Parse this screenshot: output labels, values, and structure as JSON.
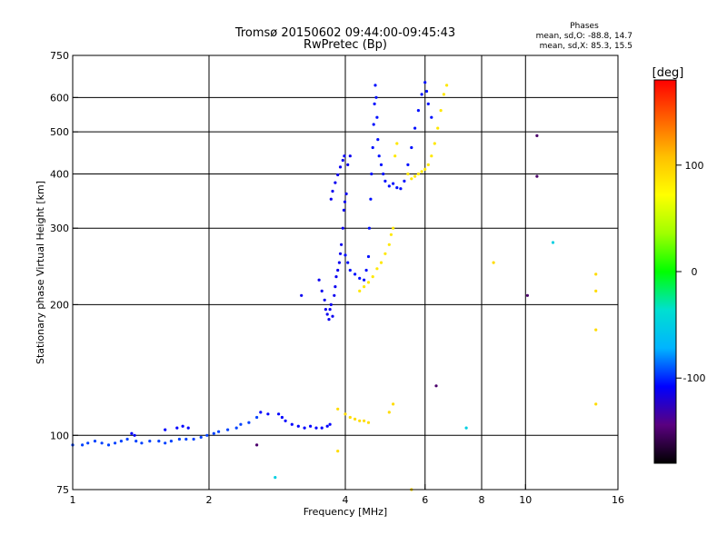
{
  "chart_data": {
    "type": "scatter",
    "title": "Tromsø 20150602 09:44:00-09:45:43",
    "subtitle": "RwPretec (Bp)",
    "annotation": {
      "heading": "Phases",
      "o_line": "mean, sd,O: -88.8, 14.7",
      "x_line": "mean, sd,X:  85.3, 15.5"
    },
    "xlabel": "Frequency [MHz]",
    "ylabel": "Stationary phase Virtual Height [km]",
    "x_scale": "log",
    "y_scale": "log",
    "xlim": [
      1,
      16
    ],
    "ylim": [
      75,
      750
    ],
    "x_ticks": [
      {
        "value": 1,
        "label": "1"
      },
      {
        "value": 2,
        "label": "2"
      },
      {
        "value": 4,
        "label": "4"
      },
      {
        "value": 6,
        "label": "6"
      },
      {
        "value": 8,
        "label": "8"
      },
      {
        "value": 10,
        "label": "10"
      },
      {
        "value": 16,
        "label": "16"
      }
    ],
    "y_ticks": [
      {
        "value": 75,
        "label": "75"
      },
      {
        "value": 100,
        "label": "100"
      },
      {
        "value": 200,
        "label": "200"
      },
      {
        "value": 300,
        "label": "300"
      },
      {
        "value": 400,
        "label": "400"
      },
      {
        "value": 500,
        "label": "500"
      },
      {
        "value": 600,
        "label": "600"
      },
      {
        "value": 750,
        "label": "750"
      }
    ],
    "x_gridlines": [
      2,
      4,
      6,
      8,
      10
    ],
    "y_gridlines": [
      100,
      200,
      300,
      400,
      500,
      600
    ],
    "grid": true,
    "colorbar": {
      "label": "[deg]",
      "range": [
        -180,
        180
      ],
      "ticks": [
        {
          "value": 100,
          "label": "100"
        },
        {
          "value": 0,
          "label": "0"
        },
        {
          "value": -100,
          "label": "-100"
        }
      ],
      "colors": [
        "#000000",
        "#5a0080",
        "#0000ff",
        "#00b4ff",
        "#00e0d0",
        "#00ff00",
        "#a0ff00",
        "#ffff00",
        "#ffc000",
        "#ff6000",
        "#ff0000"
      ]
    },
    "series": [
      {
        "phase": -95,
        "points": [
          [
            1.0,
            95
          ],
          [
            1.05,
            95
          ],
          [
            1.08,
            96
          ],
          [
            1.12,
            97
          ],
          [
            1.16,
            96
          ],
          [
            1.2,
            95
          ],
          [
            1.24,
            96
          ],
          [
            1.28,
            97
          ],
          [
            1.32,
            98
          ],
          [
            1.38,
            97
          ],
          [
            1.42,
            96
          ],
          [
            1.48,
            97
          ],
          [
            1.55,
            97
          ],
          [
            1.6,
            96
          ],
          [
            1.65,
            97
          ],
          [
            1.72,
            98
          ],
          [
            1.78,
            98
          ],
          [
            1.85,
            98
          ],
          [
            1.92,
            99
          ],
          [
            1.98,
            100
          ],
          [
            2.05,
            101
          ],
          [
            2.1,
            102
          ],
          [
            2.2,
            103
          ],
          [
            2.3,
            104
          ],
          [
            2.35,
            106
          ],
          [
            2.45,
            107
          ],
          [
            2.55,
            110
          ]
        ]
      },
      {
        "phase": -108,
        "points": [
          [
            1.35,
            101
          ],
          [
            1.37,
            100
          ],
          [
            1.6,
            103
          ],
          [
            1.7,
            104
          ],
          [
            1.75,
            105
          ],
          [
            1.8,
            104
          ],
          [
            2.6,
            113
          ],
          [
            2.7,
            112
          ],
          [
            2.85,
            112
          ],
          [
            2.9,
            110
          ],
          [
            2.95,
            108
          ],
          [
            3.05,
            106
          ],
          [
            3.15,
            105
          ],
          [
            3.25,
            104
          ],
          [
            3.35,
            105
          ],
          [
            3.45,
            104
          ],
          [
            3.55,
            104
          ],
          [
            3.65,
            105
          ],
          [
            3.7,
            106
          ]
        ]
      },
      {
        "phase": -112,
        "points": [
          [
            3.2,
            210
          ],
          [
            3.5,
            228
          ],
          [
            3.55,
            215
          ],
          [
            3.6,
            205
          ],
          [
            3.62,
            195
          ],
          [
            3.65,
            190
          ],
          [
            3.68,
            185
          ],
          [
            3.7,
            195
          ],
          [
            3.72,
            200
          ],
          [
            3.75,
            188
          ],
          [
            3.78,
            210
          ],
          [
            3.8,
            220
          ],
          [
            3.82,
            232
          ],
          [
            3.85,
            240
          ],
          [
            3.88,
            250
          ],
          [
            3.9,
            262
          ],
          [
            3.92,
            275
          ],
          [
            3.95,
            300
          ],
          [
            3.97,
            330
          ],
          [
            3.99,
            345
          ],
          [
            3.72,
            350
          ],
          [
            3.75,
            365
          ],
          [
            3.8,
            382
          ],
          [
            3.85,
            398
          ],
          [
            3.9,
            415
          ],
          [
            3.95,
            430
          ],
          [
            3.98,
            440
          ],
          [
            4.02,
            360
          ],
          [
            4.05,
            420
          ],
          [
            4.1,
            440
          ]
        ]
      },
      {
        "phase": -105,
        "points": [
          [
            4.0,
            260
          ],
          [
            4.05,
            250
          ],
          [
            4.1,
            240
          ],
          [
            4.2,
            235
          ],
          [
            4.3,
            230
          ],
          [
            4.4,
            228
          ],
          [
            4.45,
            240
          ],
          [
            4.5,
            258
          ],
          [
            4.52,
            300
          ],
          [
            4.55,
            350
          ],
          [
            4.57,
            400
          ],
          [
            4.6,
            460
          ],
          [
            4.62,
            520
          ],
          [
            4.64,
            580
          ],
          [
            4.66,
            640
          ],
          [
            4.68,
            600
          ],
          [
            4.7,
            540
          ],
          [
            4.72,
            480
          ],
          [
            4.75,
            440
          ],
          [
            4.8,
            420
          ],
          [
            4.85,
            400
          ],
          [
            4.9,
            385
          ],
          [
            5.0,
            375
          ],
          [
            5.1,
            380
          ],
          [
            5.2,
            372
          ],
          [
            5.3,
            370
          ],
          [
            5.4,
            385
          ],
          [
            5.5,
            420
          ],
          [
            5.6,
            460
          ],
          [
            5.7,
            510
          ],
          [
            5.8,
            560
          ],
          [
            5.9,
            610
          ],
          [
            6.0,
            650
          ],
          [
            6.05,
            620
          ],
          [
            6.1,
            580
          ],
          [
            6.2,
            540
          ]
        ]
      },
      {
        "phase": 85,
        "points": [
          [
            4.3,
            215
          ],
          [
            4.4,
            220
          ],
          [
            4.5,
            225
          ],
          [
            4.6,
            232
          ],
          [
            4.7,
            242
          ],
          [
            4.8,
            250
          ],
          [
            4.9,
            262
          ],
          [
            5.0,
            275
          ],
          [
            5.05,
            290
          ],
          [
            5.1,
            300
          ],
          [
            5.15,
            440
          ],
          [
            5.2,
            470
          ],
          [
            5.5,
            400
          ],
          [
            5.6,
            390
          ],
          [
            5.7,
            395
          ],
          [
            5.8,
            400
          ],
          [
            5.9,
            405
          ],
          [
            6.0,
            410
          ],
          [
            6.1,
            420
          ],
          [
            6.2,
            440
          ],
          [
            6.3,
            470
          ],
          [
            6.4,
            510
          ],
          [
            6.5,
            560
          ],
          [
            6.6,
            610
          ],
          [
            6.7,
            640
          ]
        ]
      },
      {
        "phase": 92,
        "points": [
          [
            3.85,
            115
          ],
          [
            4.0,
            112
          ],
          [
            4.1,
            110
          ],
          [
            4.2,
            109
          ],
          [
            4.3,
            108
          ],
          [
            4.4,
            108
          ],
          [
            4.5,
            107
          ],
          [
            5.0,
            113
          ],
          [
            5.1,
            118
          ],
          [
            8.5,
            250
          ],
          [
            14.3,
            235
          ],
          [
            14.3,
            215
          ],
          [
            14.3,
            175
          ],
          [
            14.3,
            118
          ],
          [
            5.6,
            75
          ],
          [
            3.85,
            92
          ]
        ]
      },
      {
        "phase": -150,
        "points": [
          [
            10.6,
            490
          ],
          [
            10.6,
            395
          ],
          [
            10.1,
            210
          ],
          [
            6.35,
            130
          ],
          [
            2.55,
            95
          ]
        ]
      },
      {
        "phase": -50,
        "points": [
          [
            11.5,
            278
          ],
          [
            7.4,
            104
          ],
          [
            2.8,
            80
          ]
        ]
      }
    ]
  }
}
